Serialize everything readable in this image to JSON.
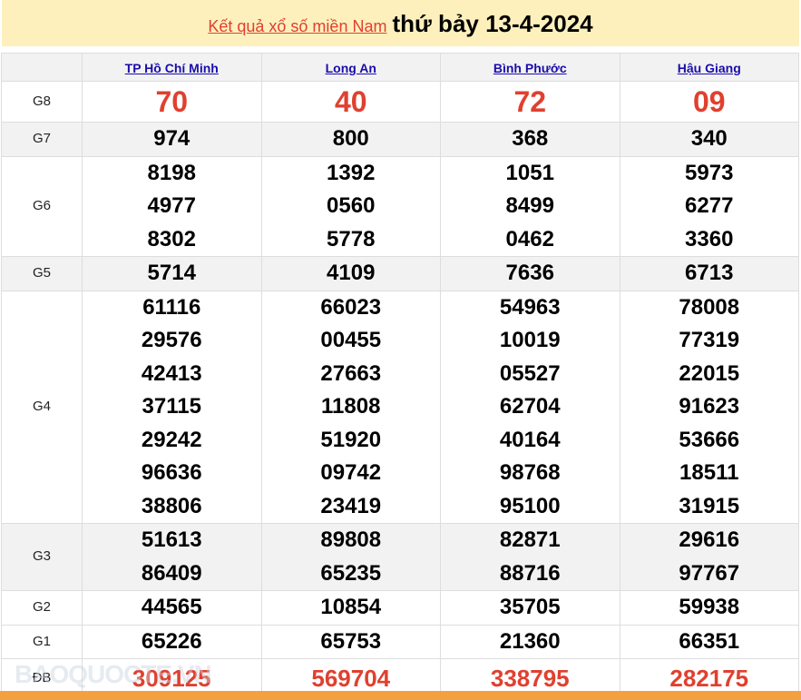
{
  "header": {
    "link": "Kết quả xổ số miền Nam",
    "date": "thứ bảy 13-4-2024"
  },
  "provinces": [
    "TP Hồ Chí Minh",
    "Long An",
    "Bình Phước",
    "Hậu Giang"
  ],
  "rows": [
    {
      "label": "G8",
      "values": [
        [
          "70"
        ],
        [
          "40"
        ],
        [
          "72"
        ],
        [
          "09"
        ]
      ]
    },
    {
      "label": "G7",
      "values": [
        [
          "974"
        ],
        [
          "800"
        ],
        [
          "368"
        ],
        [
          "340"
        ]
      ]
    },
    {
      "label": "G6",
      "values": [
        [
          "8198",
          "4977",
          "8302"
        ],
        [
          "1392",
          "0560",
          "5778"
        ],
        [
          "1051",
          "8499",
          "0462"
        ],
        [
          "5973",
          "6277",
          "3360"
        ]
      ]
    },
    {
      "label": "G5",
      "values": [
        [
          "5714"
        ],
        [
          "4109"
        ],
        [
          "7636"
        ],
        [
          "6713"
        ]
      ]
    },
    {
      "label": "G4",
      "values": [
        [
          "61116",
          "29576",
          "42413",
          "37115",
          "29242",
          "96636",
          "38806"
        ],
        [
          "66023",
          "00455",
          "27663",
          "11808",
          "51920",
          "09742",
          "23419"
        ],
        [
          "54963",
          "10019",
          "05527",
          "62704",
          "40164",
          "98768",
          "95100"
        ],
        [
          "78008",
          "77319",
          "22015",
          "91623",
          "53666",
          "18511",
          "31915"
        ]
      ]
    },
    {
      "label": "G3",
      "values": [
        [
          "51613",
          "86409"
        ],
        [
          "89808",
          "65235"
        ],
        [
          "82871",
          "88716"
        ],
        [
          "29616",
          "97767"
        ]
      ]
    },
    {
      "label": "G2",
      "values": [
        [
          "44565"
        ],
        [
          "10854"
        ],
        [
          "35705"
        ],
        [
          "59938"
        ]
      ]
    },
    {
      "label": "G1",
      "values": [
        [
          "65226"
        ],
        [
          "65753"
        ],
        [
          "21360"
        ],
        [
          "66351"
        ]
      ]
    },
    {
      "label": "ĐB",
      "values": [
        [
          "309125"
        ],
        [
          "569704"
        ],
        [
          "338795"
        ],
        [
          "282175"
        ]
      ]
    }
  ],
  "watermark": "BAOQUOCTE.VN",
  "colors": {
    "accent": "#e0402f",
    "banner": "#fdf0bd",
    "footer": "#f3a140"
  }
}
